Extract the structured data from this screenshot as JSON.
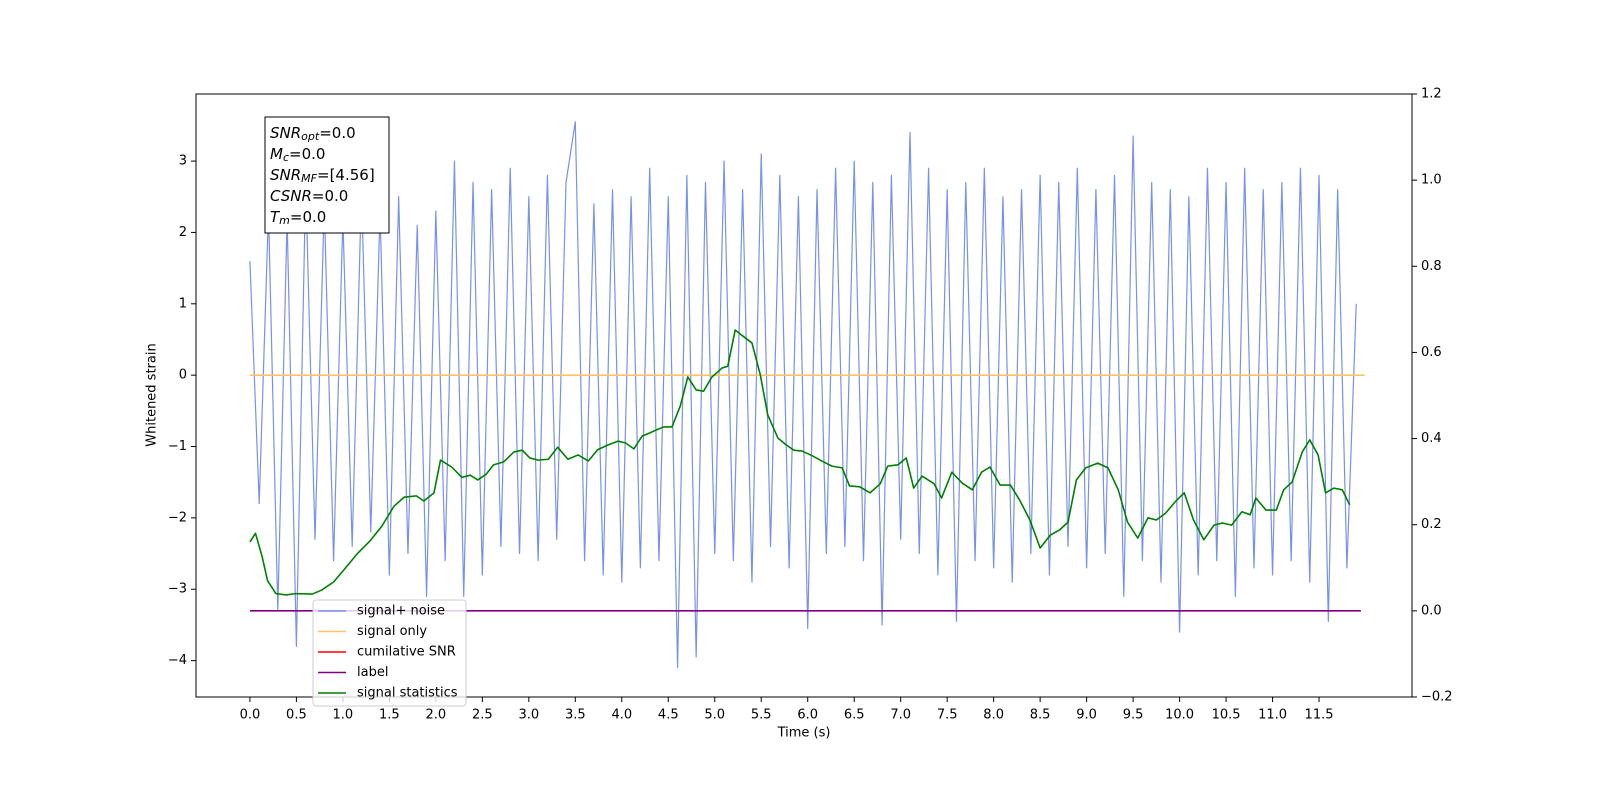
{
  "chart_data": {
    "type": "line",
    "xlabel": "Time (s)",
    "ylabel": "Whitened strain",
    "xlim": [
      -0.58,
      12.5
    ],
    "ylim": [
      -4.51,
      3.94
    ],
    "y2lim": [
      -0.2,
      1.2
    ],
    "xticks": [
      {
        "value": 0,
        "label": "0.0"
      },
      {
        "value": 0.5,
        "label": "0.5"
      },
      {
        "value": 1,
        "label": "1.0"
      },
      {
        "value": 1.5,
        "label": "1.5"
      },
      {
        "value": 2,
        "label": "2.0"
      },
      {
        "value": 2.5,
        "label": "2.5"
      },
      {
        "value": 3,
        "label": "3.0"
      },
      {
        "value": 3.5,
        "label": "3.5"
      },
      {
        "value": 4,
        "label": "4.0"
      },
      {
        "value": 4.5,
        "label": "4.5"
      },
      {
        "value": 5,
        "label": "5.0"
      },
      {
        "value": 5.5,
        "label": "5.5"
      },
      {
        "value": 6,
        "label": "6.0"
      },
      {
        "value": 6.5,
        "label": "6.5"
      },
      {
        "value": 7,
        "label": "7.0"
      },
      {
        "value": 7.5,
        "label": "7.5"
      },
      {
        "value": 8,
        "label": "8.0"
      },
      {
        "value": 8.5,
        "label": "8.5"
      },
      {
        "value": 9,
        "label": "9.0"
      },
      {
        "value": 9.5,
        "label": "9.5"
      },
      {
        "value": 10,
        "label": "10.0"
      },
      {
        "value": 10.5,
        "label": "10.5"
      },
      {
        "value": 11,
        "label": "11.0"
      },
      {
        "value": 11.5,
        "label": "11.5"
      }
    ],
    "yticks": [
      {
        "value": -4,
        "label": "−4"
      },
      {
        "value": -3,
        "label": "−3"
      },
      {
        "value": -2,
        "label": "−2"
      },
      {
        "value": -1,
        "label": "−1"
      },
      0,
      1,
      2,
      3
    ],
    "y2ticks": [
      {
        "value": -0.2,
        "label": "−0.2"
      },
      {
        "value": 0,
        "label": "0.0"
      },
      {
        "value": 0.2,
        "label": "0.2"
      },
      {
        "value": 0.4,
        "label": "0.4"
      },
      {
        "value": 0.6,
        "label": "0.6"
      },
      {
        "value": 0.8,
        "label": "0.8"
      },
      {
        "value": 1,
        "label": "1.0"
      },
      {
        "value": 1.2,
        "label": "1.2"
      }
    ],
    "legend": "lower left",
    "annotation": [
      {
        "base": "SNR",
        "sub": "opt",
        "text": "=0.0"
      },
      {
        "base": "M",
        "sub": "c",
        "text": "=0.0"
      },
      {
        "base": "SNR",
        "sub": "MF",
        "text": "=[4.56]"
      },
      {
        "base": "CSNR",
        "sub": "",
        "text": "=0.0"
      },
      {
        "base": "T",
        "sub": "m",
        "text": "=0.0"
      }
    ],
    "series": [
      {
        "name": "signal+ noise",
        "color": "#7792e6",
        "x": [
          0.0,
          0.1,
          0.2,
          0.3,
          0.4,
          0.5,
          0.6,
          0.7,
          0.8,
          0.9,
          1.0,
          1.1,
          1.2,
          1.3,
          1.4,
          1.5,
          1.6,
          1.7,
          1.8,
          1.9,
          2.0,
          2.1,
          2.2,
          2.3,
          2.4,
          2.5,
          2.6,
          2.7,
          2.8,
          2.9,
          3.0,
          3.1,
          3.2,
          3.3,
          3.4,
          3.5,
          3.6,
          3.7,
          3.8,
          3.9,
          4.0,
          4.1,
          4.2,
          4.3,
          4.4,
          4.5,
          4.6,
          4.7,
          4.8,
          4.9,
          5.0,
          5.1,
          5.2,
          5.3,
          5.4,
          5.5,
          5.6,
          5.7,
          5.8,
          5.9,
          6.0,
          6.1,
          6.2,
          6.3,
          6.4,
          6.5,
          6.6,
          6.7,
          6.8,
          6.9,
          7.0,
          7.1,
          7.2,
          7.3,
          7.4,
          7.5,
          7.6,
          7.7,
          7.8,
          7.9,
          8.0,
          8.1,
          8.2,
          8.3,
          8.4,
          8.5,
          8.6,
          8.7,
          8.8,
          8.9,
          9.0,
          9.1,
          9.2,
          9.3,
          9.4,
          9.5,
          9.6,
          9.7,
          9.8,
          9.9,
          10.0,
          10.1,
          10.2,
          10.3,
          10.4,
          10.5,
          10.6,
          10.7,
          10.8,
          10.9,
          11.0,
          11.1,
          11.2,
          11.3,
          11.4,
          11.5,
          11.6,
          11.7,
          11.8,
          11.9
        ],
        "values": [
          1.6,
          -1.8,
          2.3,
          -3.3,
          2.2,
          -3.8,
          2.7,
          -2.3,
          2.4,
          -2.6,
          2.2,
          -2.4,
          2.6,
          -2.2,
          2.3,
          -2.8,
          2.5,
          -2.5,
          2.1,
          -3.1,
          2.3,
          -2.6,
          3.0,
          -3.1,
          2.7,
          -2.8,
          2.6,
          -2.4,
          2.9,
          -2.5,
          2.5,
          -2.6,
          2.8,
          -2.3,
          2.7,
          3.55,
          -2.6,
          2.4,
          -2.8,
          2.6,
          -2.9,
          2.5,
          -2.7,
          2.9,
          -2.6,
          2.5,
          -4.1,
          2.8,
          -3.95,
          2.7,
          -2.5,
          3.0,
          -2.6,
          2.6,
          -2.9,
          3.1,
          -2.4,
          2.8,
          -2.7,
          2.5,
          -3.55,
          2.6,
          -2.5,
          2.9,
          -2.4,
          3.0,
          -2.6,
          2.7,
          -3.5,
          2.8,
          -2.3,
          3.4,
          -2.5,
          2.9,
          -2.8,
          2.6,
          -3.45,
          2.7,
          -2.6,
          2.9,
          -2.7,
          2.5,
          -2.9,
          2.6,
          -2.5,
          2.8,
          -2.8,
          2.7,
          -2.4,
          2.9,
          -2.7,
          2.6,
          -2.5,
          2.8,
          -3.1,
          3.35,
          -2.6,
          2.7,
          -2.9,
          2.6,
          -3.6,
          2.5,
          -2.8,
          2.9,
          -2.6,
          2.7,
          -3.1,
          2.9,
          -2.7,
          2.6,
          -2.8,
          2.7,
          -2.6,
          2.9,
          -2.9,
          2.8,
          -3.45,
          2.6,
          -2.7,
          1.0
        ]
      },
      {
        "name": "signal only",
        "color": "#ffc266",
        "x": [
          0,
          11.99
        ],
        "values": [
          0,
          0
        ]
      },
      {
        "name": "cumilative SNR",
        "color": "#ff0000",
        "x": [],
        "values": []
      },
      {
        "name": "label",
        "color": "#800080",
        "axis": "y2",
        "x": [
          0,
          11.95
        ],
        "values": [
          0,
          0
        ]
      },
      {
        "name": "signal statistics",
        "color": "#008000",
        "axis": "y2",
        "x": [
          0.0,
          0.06,
          0.13,
          0.19,
          0.28,
          0.39,
          0.49,
          0.67,
          0.77,
          0.9,
          1.03,
          1.16,
          1.29,
          1.42,
          1.55,
          1.66,
          1.79,
          1.87,
          1.98,
          2.05,
          2.17,
          2.28,
          2.37,
          2.45,
          2.54,
          2.62,
          2.73,
          2.84,
          2.93,
          3.01,
          3.1,
          3.21,
          3.31,
          3.42,
          3.53,
          3.64,
          3.74,
          3.85,
          3.96,
          4.04,
          4.13,
          4.22,
          4.3,
          4.37,
          4.45,
          4.54,
          4.63,
          4.71,
          4.8,
          4.88,
          4.97,
          5.08,
          5.14,
          5.22,
          5.29,
          5.4,
          5.49,
          5.57,
          5.68,
          5.77,
          5.85,
          5.94,
          6.05,
          6.15,
          6.26,
          6.37,
          6.45,
          6.56,
          6.67,
          6.78,
          6.86,
          6.97,
          7.06,
          7.14,
          7.23,
          7.36,
          7.44,
          7.55,
          7.66,
          7.77,
          7.87,
          7.96,
          8.07,
          8.18,
          8.28,
          8.39,
          8.5,
          8.61,
          8.71,
          8.8,
          8.89,
          8.99,
          9.12,
          9.23,
          9.34,
          9.44,
          9.55,
          9.66,
          9.75,
          9.85,
          9.96,
          10.05,
          10.15,
          10.26,
          10.37,
          10.46,
          10.56,
          10.67,
          10.76,
          10.82,
          10.93,
          11.04,
          11.12,
          11.21,
          11.32,
          11.4,
          11.49,
          11.57,
          11.66,
          11.75,
          11.83
        ],
        "values": [
          0.16,
          0.18,
          0.127,
          0.07,
          0.04,
          0.037,
          0.04,
          0.039,
          0.048,
          0.067,
          0.1,
          0.134,
          0.162,
          0.197,
          0.243,
          0.264,
          0.267,
          0.255,
          0.274,
          0.35,
          0.334,
          0.31,
          0.315,
          0.304,
          0.317,
          0.339,
          0.346,
          0.369,
          0.373,
          0.355,
          0.35,
          0.352,
          0.38,
          0.352,
          0.362,
          0.348,
          0.374,
          0.385,
          0.394,
          0.39,
          0.376,
          0.406,
          0.413,
          0.42,
          0.427,
          0.427,
          0.476,
          0.543,
          0.513,
          0.51,
          0.543,
          0.564,
          0.568,
          0.652,
          0.64,
          0.622,
          0.548,
          0.455,
          0.401,
          0.385,
          0.373,
          0.371,
          0.36,
          0.348,
          0.336,
          0.332,
          0.29,
          0.288,
          0.274,
          0.295,
          0.336,
          0.339,
          0.355,
          0.285,
          0.313,
          0.295,
          0.262,
          0.322,
          0.297,
          0.281,
          0.322,
          0.334,
          0.292,
          0.292,
          0.257,
          0.211,
          0.146,
          0.176,
          0.188,
          0.206,
          0.304,
          0.332,
          0.343,
          0.332,
          0.281,
          0.206,
          0.169,
          0.216,
          0.211,
          0.227,
          0.255,
          0.274,
          0.211,
          0.165,
          0.199,
          0.204,
          0.199,
          0.23,
          0.223,
          0.262,
          0.234,
          0.234,
          0.281,
          0.299,
          0.369,
          0.397,
          0.362,
          0.274,
          0.285,
          0.281,
          0.246
        ]
      }
    ]
  }
}
